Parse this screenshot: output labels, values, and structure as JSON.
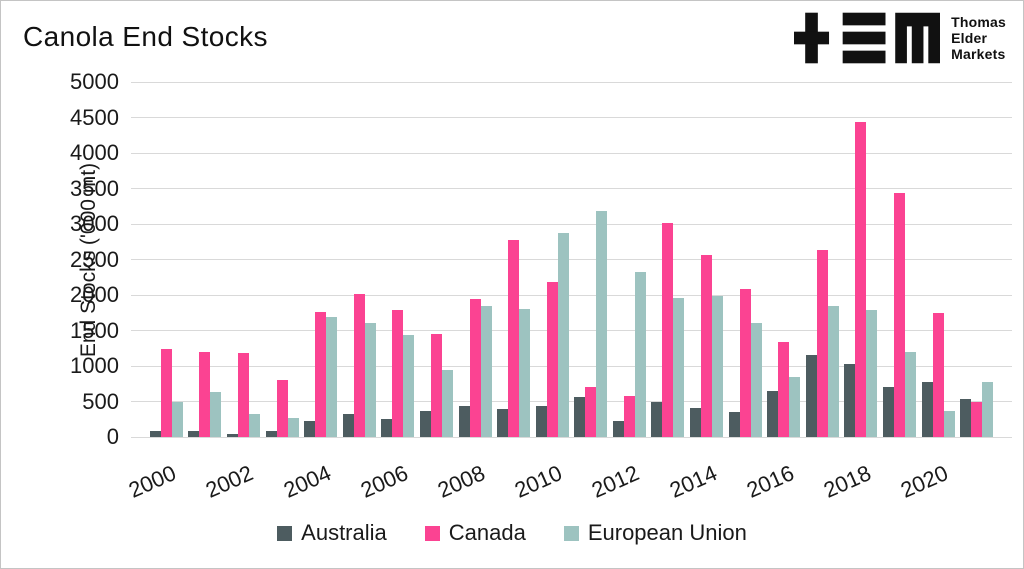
{
  "header": {
    "title": "Canola End Stocks",
    "logo": {
      "line1": "Thomas",
      "line2": "Elder",
      "line3": "Markets"
    }
  },
  "chart_data": {
    "type": "bar",
    "title": "Canola End Stocks",
    "xlabel": "",
    "ylabel": "End Stocks ('000 mt)",
    "ylim": [
      0,
      5000
    ],
    "y_ticks": [
      "0",
      "500",
      "1000",
      "1500",
      "2000",
      "2500",
      "3000",
      "3500",
      "4000",
      "4500",
      "5000"
    ],
    "grid": "horizontal",
    "legend_position": "bottom",
    "categories": [
      "2000",
      "2001",
      "2002",
      "2003",
      "2004",
      "2005",
      "2006",
      "2007",
      "2008",
      "2009",
      "2010",
      "2011",
      "2012",
      "2013",
      "2014",
      "2015",
      "2016",
      "2017",
      "2018",
      "2019",
      "2020",
      "2021"
    ],
    "x_tick_labels": [
      "2000",
      "2002",
      "2004",
      "2006",
      "2008",
      "2010",
      "2012",
      "2014",
      "2016",
      "2018",
      "2020"
    ],
    "series": [
      {
        "name": "Australia",
        "color": "#4d5c60",
        "values": [
          80,
          90,
          40,
          80,
          230,
          330,
          250,
          360,
          440,
          400,
          430,
          560,
          230,
          500,
          410,
          350,
          650,
          1160,
          1030,
          710,
          780,
          530
        ]
      },
      {
        "name": "Canada",
        "color": "#fb4392",
        "values": [
          1240,
          1200,
          1190,
          810,
          1760,
          2010,
          1790,
          1450,
          1940,
          2780,
          2190,
          700,
          580,
          3010,
          2570,
          2080,
          1340,
          2630,
          4440,
          3430,
          1750,
          500
        ]
      },
      {
        "name": "European Union",
        "color": "#9dc3c0",
        "values": [
          490,
          630,
          330,
          270,
          1690,
          1600,
          1440,
          950,
          1840,
          1810,
          2870,
          3190,
          2330,
          1960,
          1980,
          1610,
          840,
          1850,
          1790,
          1200,
          370,
          780
        ]
      }
    ]
  },
  "colors": {
    "gridline": "#d9d9d9",
    "text": "#1a1a1a",
    "logo": "#111111",
    "background": "#ffffff"
  }
}
